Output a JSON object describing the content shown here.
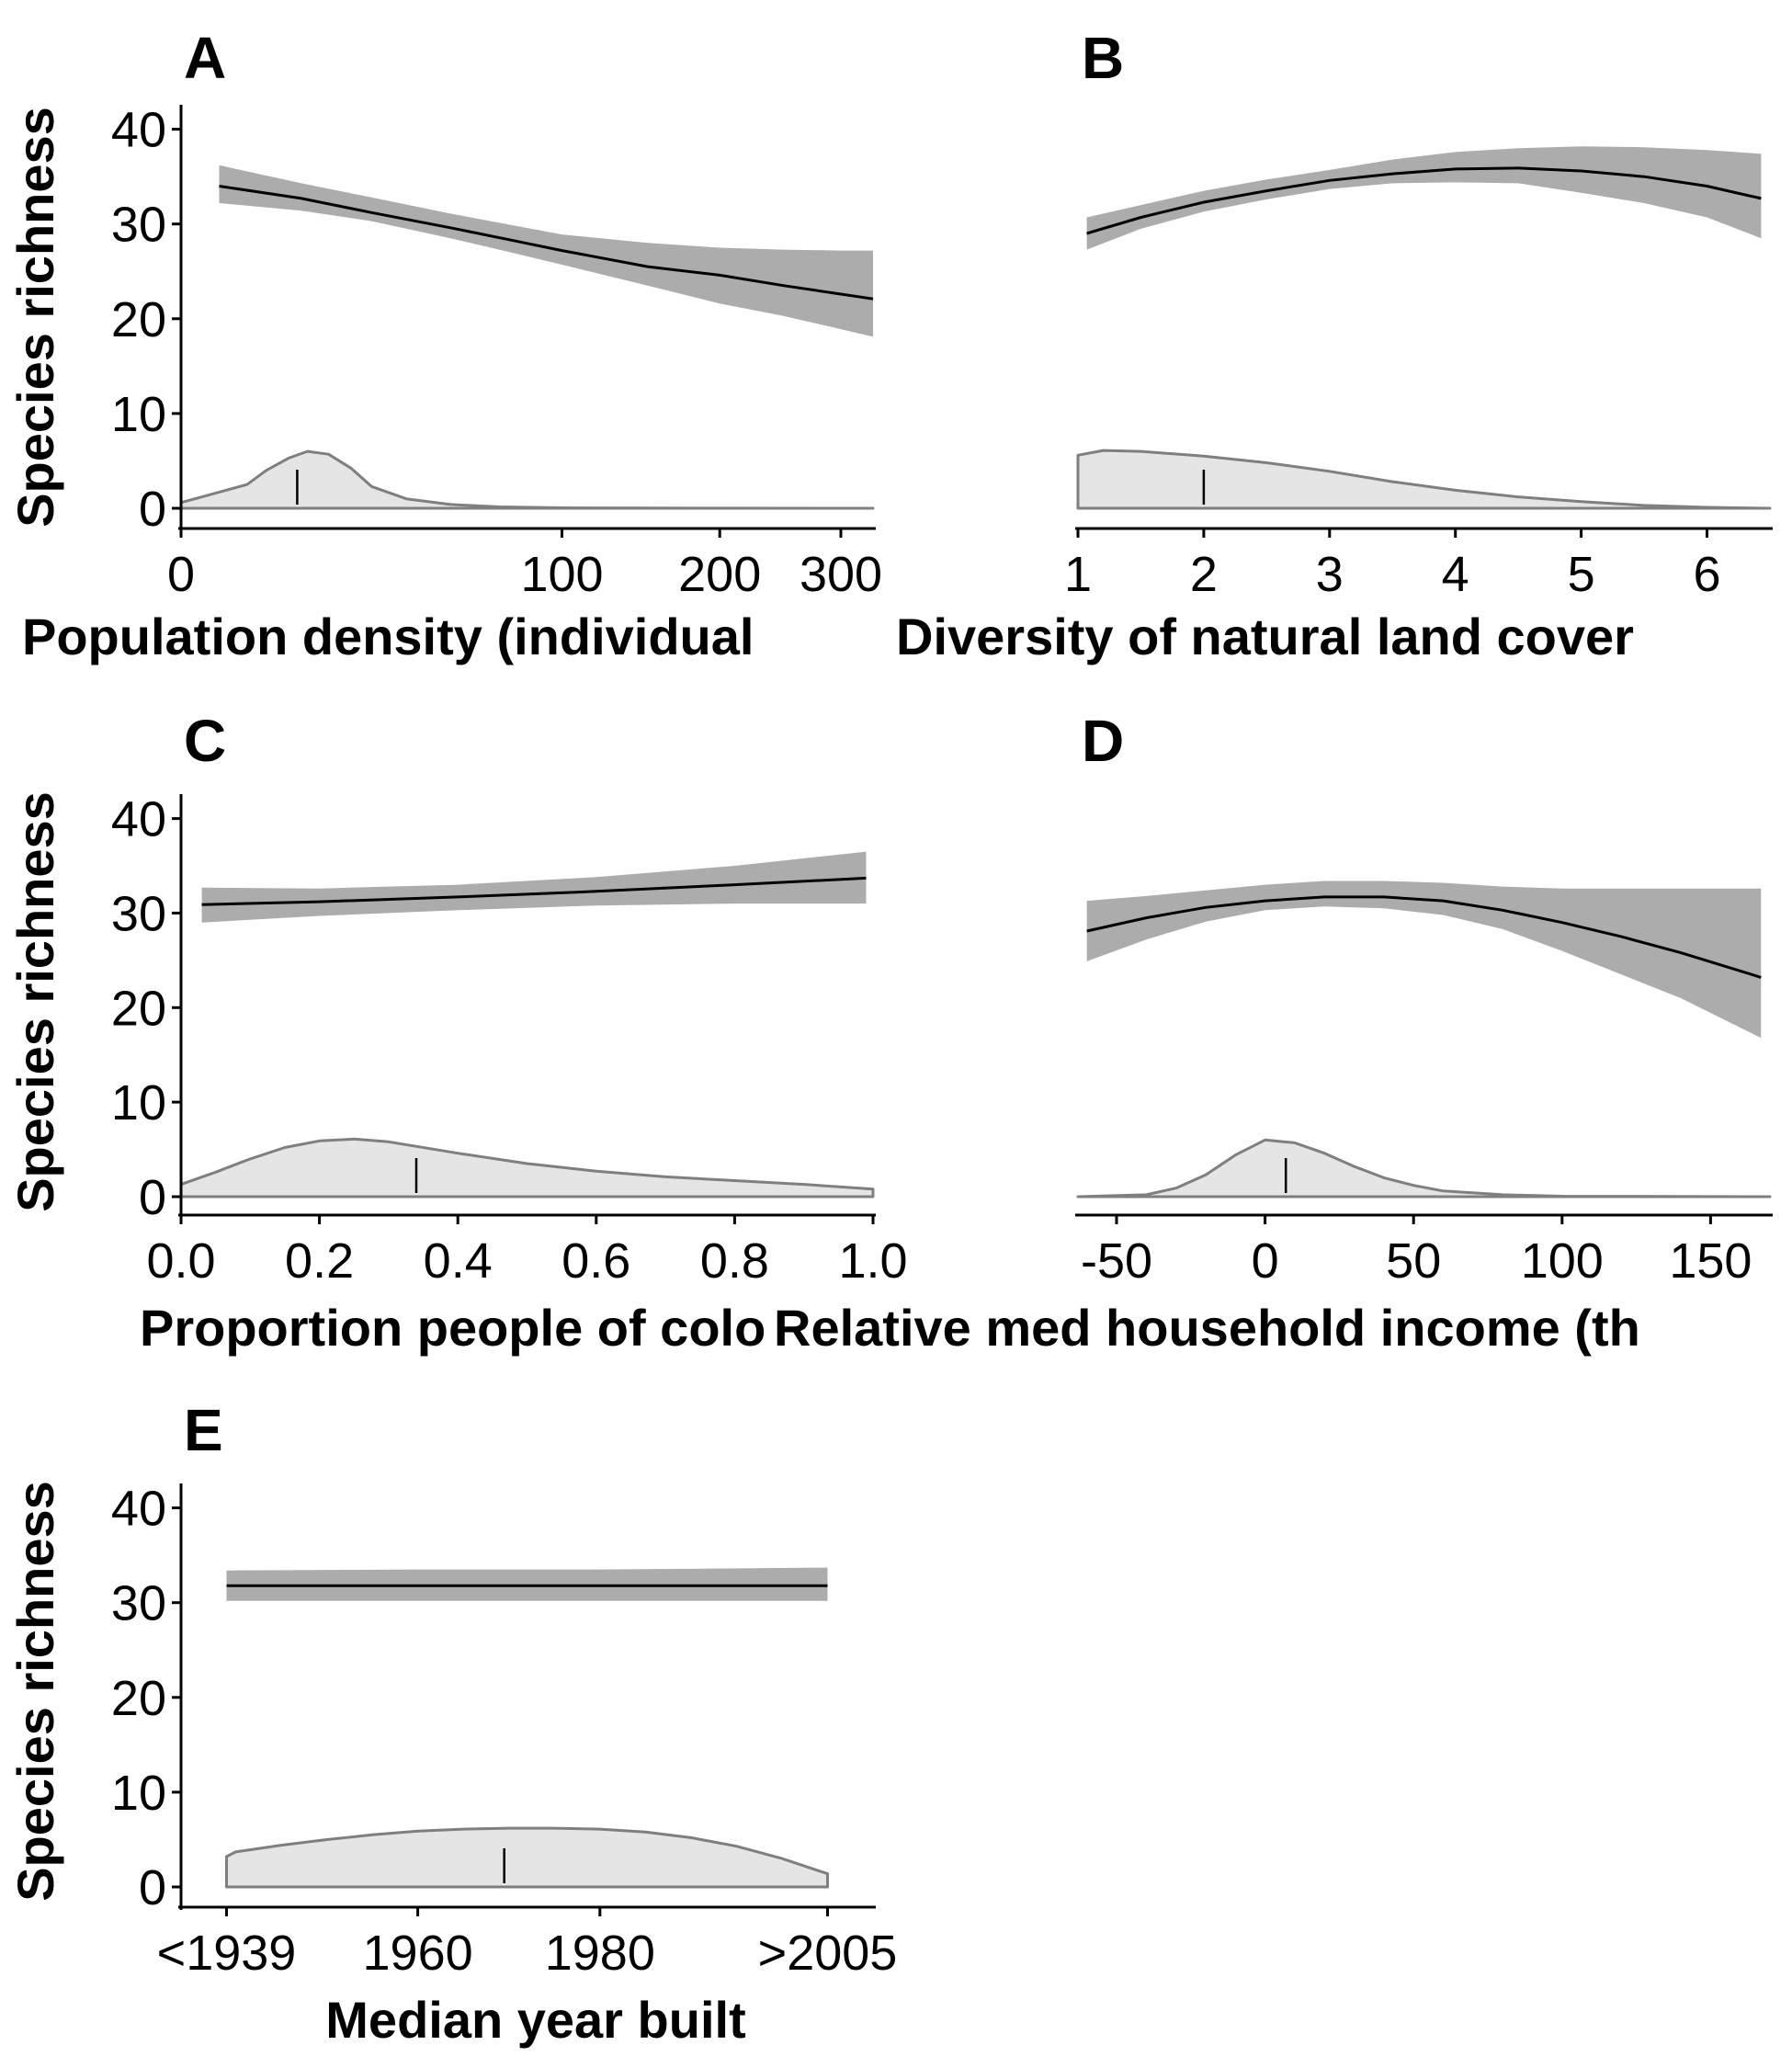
{
  "chart_data": [
    {
      "type": "line",
      "panel": "A",
      "xlabel": "Population density (individual",
      "ylabel": "Species richness",
      "x_scale": "sqrt",
      "xlim": [
        0,
        330
      ],
      "ylim": [
        0,
        42
      ],
      "x_ticks": [
        0,
        100,
        200,
        300
      ],
      "x_tick_labels": [
        "0",
        "100",
        "200",
        "300"
      ],
      "y_ticks": [
        0,
        10,
        20,
        30,
        40
      ],
      "y_tick_labels": [
        "0",
        "10",
        "20",
        "30",
        "40"
      ],
      "series": [
        {
          "role": "fit",
          "x": [
            1,
            10,
            25,
            50,
            75,
            100,
            150,
            200,
            250,
            300,
            330
          ],
          "y": [
            34.0,
            32.7,
            31.2,
            29.6,
            28.3,
            27.2,
            25.5,
            24.6,
            23.5,
            22.6,
            22.1
          ]
        },
        {
          "role": "ci",
          "x": [
            1,
            10,
            25,
            50,
            75,
            100,
            150,
            200,
            250,
            300,
            330
          ],
          "lower": [
            32.2,
            31.4,
            30.3,
            28.5,
            27.0,
            25.7,
            23.5,
            21.6,
            20.3,
            18.9,
            18.1
          ],
          "upper": [
            36.2,
            34.3,
            32.8,
            31.1,
            29.9,
            28.9,
            28.0,
            27.5,
            27.3,
            27.2,
            27.2
          ]
        },
        {
          "role": "density",
          "x": [
            0,
            3,
            5,
            8,
            11,
            15,
            20,
            25,
            35,
            50,
            70,
            100,
            150,
            200,
            330
          ],
          "y": [
            0.6,
            2.5,
            4.0,
            5.3,
            6.0,
            5.7,
            4.2,
            2.3,
            1.0,
            0.4,
            0.15,
            0.05,
            0.02,
            0.01,
            0.0
          ]
        }
      ],
      "median_marker": 9.3
    },
    {
      "type": "line",
      "panel": "B",
      "xlabel": "Diversity of natural land cover",
      "ylabel": "",
      "x_scale": "linear",
      "xlim": [
        1,
        6.5
      ],
      "ylim": [
        0,
        42
      ],
      "x_ticks": [
        1,
        2,
        3,
        4,
        5,
        6
      ],
      "x_tick_labels": [
        "1",
        "2",
        "3",
        "4",
        "5",
        "6"
      ],
      "y_ticks": [
        0,
        10,
        20,
        30,
        40
      ],
      "y_tick_labels": [],
      "series": [
        {
          "role": "fit",
          "x": [
            1.07,
            1.5,
            2.0,
            2.5,
            3.0,
            3.5,
            4.0,
            4.5,
            5.0,
            5.5,
            6.0,
            6.43
          ],
          "y": [
            29.0,
            30.7,
            32.3,
            33.5,
            34.6,
            35.3,
            35.8,
            35.9,
            35.6,
            35.0,
            34.0,
            32.7
          ]
        },
        {
          "role": "ci",
          "x": [
            1.07,
            1.5,
            2.0,
            2.5,
            3.0,
            3.5,
            4.0,
            4.5,
            5.0,
            5.5,
            6.0,
            6.43
          ],
          "lower": [
            27.3,
            29.5,
            31.3,
            32.6,
            33.7,
            34.3,
            34.4,
            34.3,
            33.3,
            32.2,
            30.7,
            28.5
          ],
          "upper": [
            30.7,
            32.0,
            33.5,
            34.7,
            35.7,
            36.8,
            37.6,
            38.0,
            38.2,
            38.1,
            37.8,
            37.4
          ]
        },
        {
          "role": "density",
          "x": [
            1.0,
            1.2,
            1.5,
            2.0,
            2.5,
            3.0,
            3.5,
            4.0,
            4.5,
            5.0,
            5.5,
            6.0,
            6.5
          ],
          "y": [
            5.6,
            6.1,
            6.0,
            5.5,
            4.8,
            3.9,
            2.8,
            1.9,
            1.2,
            0.7,
            0.3,
            0.1,
            0.0
          ]
        }
      ],
      "median_marker": 2.0
    },
    {
      "type": "line",
      "panel": "C",
      "xlabel": "Proportion people of colo",
      "ylabel": "Species richness",
      "x_scale": "linear",
      "xlim": [
        0,
        1
      ],
      "ylim": [
        0,
        42
      ],
      "x_ticks": [
        0.0,
        0.2,
        0.4,
        0.6,
        0.8,
        1.0
      ],
      "x_tick_labels": [
        "0.0",
        "0.2",
        "0.4",
        "0.6",
        "0.8",
        "1.0"
      ],
      "y_ticks": [
        0,
        10,
        20,
        30,
        40
      ],
      "y_tick_labels": [
        "0",
        "10",
        "20",
        "30",
        "40"
      ],
      "series": [
        {
          "role": "fit",
          "x": [
            0.03,
            0.2,
            0.4,
            0.6,
            0.8,
            0.99
          ],
          "y": [
            30.9,
            31.2,
            31.7,
            32.3,
            33.0,
            33.7
          ]
        },
        {
          "role": "ci",
          "x": [
            0.03,
            0.2,
            0.4,
            0.6,
            0.8,
            0.99
          ],
          "lower": [
            29.0,
            29.7,
            30.3,
            30.8,
            31.0,
            31.0
          ],
          "upper": [
            32.7,
            32.6,
            33.0,
            33.8,
            35.0,
            36.5
          ]
        },
        {
          "role": "density",
          "x": [
            0.0,
            0.05,
            0.1,
            0.15,
            0.2,
            0.25,
            0.3,
            0.4,
            0.5,
            0.6,
            0.7,
            0.8,
            0.9,
            1.0
          ],
          "y": [
            1.3,
            2.6,
            4.0,
            5.2,
            5.9,
            6.1,
            5.8,
            4.6,
            3.5,
            2.7,
            2.1,
            1.7,
            1.3,
            0.8
          ]
        }
      ],
      "median_marker": 0.34
    },
    {
      "type": "line",
      "panel": "D",
      "xlabel": "Relative med household income (th",
      "ylabel": "",
      "x_scale": "linear",
      "xlim": [
        -63,
        170
      ],
      "ylim": [
        0,
        42
      ],
      "x_ticks": [
        -50,
        0,
        50,
        100,
        150
      ],
      "x_tick_labels": [
        "-50",
        "0",
        "50",
        "100",
        "150"
      ],
      "y_ticks": [
        0,
        10,
        20,
        30,
        40
      ],
      "y_tick_labels": [],
      "series": [
        {
          "role": "fit",
          "x": [
            -60,
            -40,
            -20,
            0,
            20,
            40,
            60,
            80,
            100,
            120,
            140,
            167
          ],
          "y": [
            28.1,
            29.5,
            30.6,
            31.3,
            31.7,
            31.7,
            31.3,
            30.3,
            29.0,
            27.5,
            25.8,
            23.2
          ]
        },
        {
          "role": "ci",
          "x": [
            -60,
            -40,
            -20,
            0,
            20,
            40,
            60,
            80,
            100,
            120,
            140,
            167
          ],
          "lower": [
            24.9,
            27.2,
            29.1,
            30.3,
            30.7,
            30.5,
            29.8,
            28.3,
            26.0,
            23.5,
            21.0,
            16.8
          ]
        },
        {
          "role": "ci_upper",
          "x": [
            -60,
            -40,
            -20,
            0,
            20,
            40,
            60,
            80,
            100,
            120,
            140,
            167
          ],
          "upper": [
            31.3,
            31.8,
            32.4,
            33.0,
            33.4,
            33.4,
            33.2,
            32.8,
            32.6,
            32.6,
            32.6,
            32.6
          ]
        },
        {
          "role": "density",
          "x": [
            -63,
            -40,
            -30,
            -20,
            -10,
            0,
            10,
            20,
            30,
            40,
            50,
            60,
            80,
            100,
            170
          ],
          "y": [
            0.0,
            0.2,
            0.9,
            2.3,
            4.4,
            6.0,
            5.7,
            4.6,
            3.2,
            2.0,
            1.2,
            0.6,
            0.2,
            0.05,
            0.0
          ]
        }
      ],
      "median_marker": 7
    },
    {
      "type": "line",
      "panel": "E",
      "xlabel": "Median year built",
      "ylabel": "Species richness",
      "x_scale": "linear",
      "xlim": [
        1934,
        2010
      ],
      "ylim": [
        0,
        42
      ],
      "x_ticks": [
        1939,
        1960,
        1980,
        2005
      ],
      "x_tick_labels": [
        "<1939",
        "1960",
        "1980",
        ">2005"
      ],
      "y_ticks": [
        0,
        10,
        20,
        30,
        40
      ],
      "y_tick_labels": [
        "0",
        "10",
        "20",
        "30",
        "40"
      ],
      "series": [
        {
          "role": "fit",
          "x": [
            1939,
            1960,
            1980,
            2005
          ],
          "y": [
            31.8,
            31.8,
            31.8,
            31.8
          ]
        },
        {
          "role": "ci",
          "x": [
            1939,
            1960,
            1980,
            2005
          ],
          "lower": [
            30.2,
            30.2,
            30.2,
            30.2
          ],
          "upper": [
            33.4,
            33.5,
            33.5,
            33.7
          ]
        },
        {
          "role": "density",
          "x": [
            1939,
            1940,
            1945,
            1950,
            1955,
            1960,
            1965,
            1970,
            1975,
            1980,
            1985,
            1990,
            1995,
            2000,
            2005
          ],
          "y": [
            3.2,
            3.7,
            4.4,
            5.0,
            5.5,
            5.9,
            6.1,
            6.2,
            6.2,
            6.1,
            5.8,
            5.2,
            4.3,
            3.0,
            1.4
          ]
        }
      ],
      "median_marker": 1969.5
    }
  ]
}
